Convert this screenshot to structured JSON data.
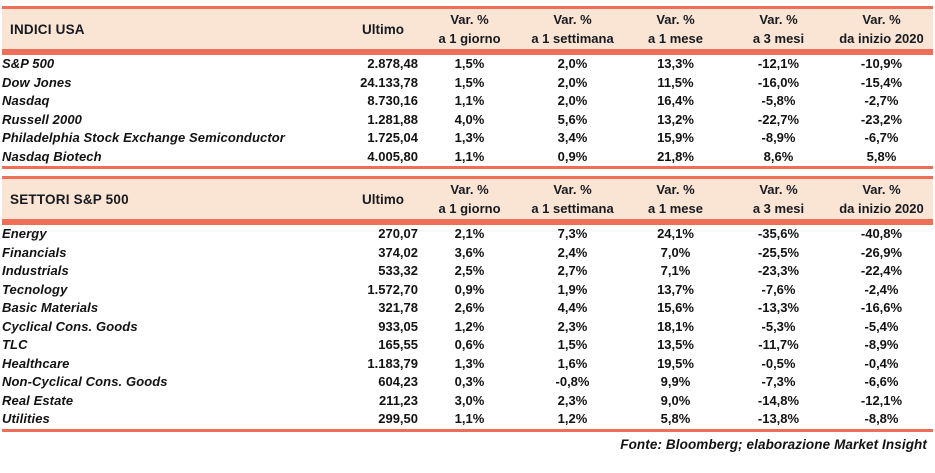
{
  "colors": {
    "accent_border": "#ee6e57",
    "header_background": "#fae4d3",
    "header_text": "#171a20",
    "body_text": "#121212"
  },
  "tables": [
    {
      "title": "INDICI USA",
      "ultimo_label": "Ultimo",
      "var_columns": [
        {
          "top": "Var. %",
          "bottom": "a 1 giorno"
        },
        {
          "top": "Var. %",
          "bottom": "a 1 settimana"
        },
        {
          "top": "Var. %",
          "bottom": "a 1 mese"
        },
        {
          "top": "Var. %",
          "bottom": "a 3 mesi"
        },
        {
          "top": "Var. %",
          "bottom": "da inizio 2020"
        }
      ],
      "rows": [
        {
          "name": "S&P 500",
          "ultimo": "2.878,48",
          "values": [
            "1,5%",
            "2,0%",
            "13,3%",
            "-12,1%",
            "-10,9%"
          ]
        },
        {
          "name": "Dow Jones",
          "ultimo": "24.133,78",
          "values": [
            "1,5%",
            "2,0%",
            "11,5%",
            "-16,0%",
            "-15,4%"
          ]
        },
        {
          "name": "Nasdaq",
          "ultimo": "8.730,16",
          "values": [
            "1,1%",
            "2,0%",
            "16,4%",
            "-5,8%",
            "-2,7%"
          ]
        },
        {
          "name": "Russell 2000",
          "ultimo": "1.281,88",
          "values": [
            "4,0%",
            "5,6%",
            "13,2%",
            "-22,7%",
            "-23,2%"
          ]
        },
        {
          "name": "Philadelphia Stock Exchange Semiconductor",
          "ultimo": "1.725,04",
          "values": [
            "1,3%",
            "3,4%",
            "15,9%",
            "-8,9%",
            "-6,7%"
          ]
        },
        {
          "name": "Nasdaq Biotech",
          "ultimo": "4.005,80",
          "values": [
            "1,1%",
            "0,9%",
            "21,8%",
            "8,6%",
            "5,8%"
          ]
        }
      ]
    },
    {
      "title": "SETTORI S&P 500",
      "ultimo_label": "Ultimo",
      "var_columns": [
        {
          "top": "Var. %",
          "bottom": "a 1 giorno"
        },
        {
          "top": "Var. %",
          "bottom": "a 1 settimana"
        },
        {
          "top": "Var. %",
          "bottom": "a 1 mese"
        },
        {
          "top": "Var. %",
          "bottom": "a 3 mesi"
        },
        {
          "top": "Var. %",
          "bottom": "da inizio 2020"
        }
      ],
      "rows": [
        {
          "name": "Energy",
          "ultimo": "270,07",
          "values": [
            "2,1%",
            "7,3%",
            "24,1%",
            "-35,6%",
            "-40,8%"
          ]
        },
        {
          "name": "Financials",
          "ultimo": "374,02",
          "values": [
            "3,6%",
            "2,4%",
            "7,0%",
            "-25,5%",
            "-26,9%"
          ]
        },
        {
          "name": "Industrials",
          "ultimo": "533,32",
          "values": [
            "2,5%",
            "2,7%",
            "7,1%",
            "-23,3%",
            "-22,4%"
          ]
        },
        {
          "name": "Tecnology",
          "ultimo": "1.572,70",
          "values": [
            "0,9%",
            "1,9%",
            "13,7%",
            "-7,6%",
            "-2,4%"
          ]
        },
        {
          "name": "Basic Materials",
          "ultimo": "321,78",
          "values": [
            "2,6%",
            "4,4%",
            "15,6%",
            "-13,3%",
            "-16,6%"
          ]
        },
        {
          "name": "Cyclical Cons. Goods",
          "ultimo": "933,05",
          "values": [
            "1,2%",
            "2,3%",
            "18,1%",
            "-5,3%",
            "-5,4%"
          ]
        },
        {
          "name": "TLC",
          "ultimo": "165,55",
          "values": [
            "0,6%",
            "1,5%",
            "13,5%",
            "-11,7%",
            "-8,9%"
          ]
        },
        {
          "name": "Healthcare",
          "ultimo": "1.183,79",
          "values": [
            "1,3%",
            "1,6%",
            "19,5%",
            "-0,5%",
            "-0,4%"
          ]
        },
        {
          "name": "Non-Cyclical Cons. Goods",
          "ultimo": "604,23",
          "values": [
            "0,3%",
            "-0,8%",
            "9,9%",
            "-7,3%",
            "-6,6%"
          ]
        },
        {
          "name": "Real Estate",
          "ultimo": "211,23",
          "values": [
            "3,0%",
            "2,3%",
            "9,0%",
            "-14,8%",
            "-12,1%"
          ]
        },
        {
          "name": "Utilities",
          "ultimo": "299,50",
          "values": [
            "1,1%",
            "1,2%",
            "5,8%",
            "-13,8%",
            "-8,8%"
          ]
        }
      ]
    }
  ],
  "footer": "Fonte: Bloomberg; elaborazione Market Insight"
}
